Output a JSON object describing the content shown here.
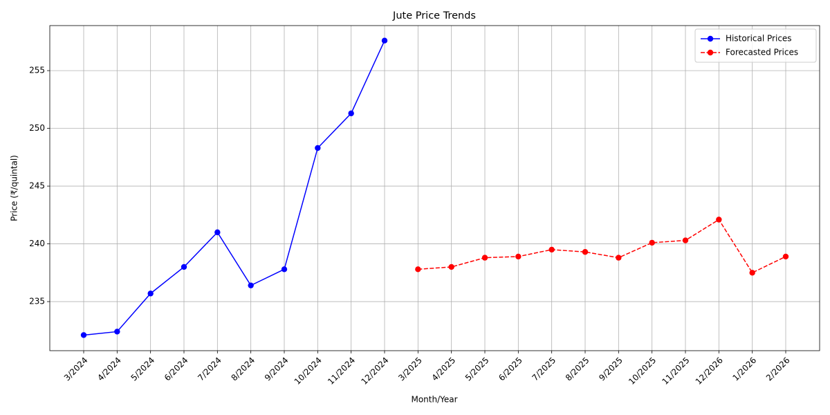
{
  "chart_data": {
    "type": "line",
    "title": "Jute Price Trends",
    "x_label": "Month/Year",
    "y_label": "Price (₹/quintal)",
    "categories": [
      "3/2024",
      "4/2024",
      "5/2024",
      "6/2024",
      "7/2024",
      "8/2024",
      "9/2024",
      "10/2024",
      "11/2024",
      "12/2024",
      "3/2025",
      "4/2025",
      "5/2025",
      "6/2025",
      "7/2025",
      "8/2025",
      "9/2025",
      "10/2025",
      "11/2025",
      "12/2026",
      "1/2026",
      "2/2026"
    ],
    "series": [
      {
        "name": "Historical Prices",
        "color": "#0000ff",
        "dashed": false,
        "values": [
          232.1,
          232.4,
          235.7,
          238.0,
          241.0,
          236.4,
          237.8,
          248.3,
          251.3,
          257.6,
          null,
          null,
          null,
          null,
          null,
          null,
          null,
          null,
          null,
          null,
          null,
          null
        ]
      },
      {
        "name": "Forecasted Prices",
        "color": "#ff0000",
        "dashed": true,
        "values": [
          null,
          null,
          null,
          null,
          null,
          null,
          null,
          null,
          null,
          null,
          237.8,
          238.0,
          238.8,
          238.9,
          239.5,
          239.3,
          238.8,
          240.1,
          240.3,
          242.1,
          237.5,
          238.9
        ]
      }
    ],
    "ylim": [
      230.75,
      258.9
    ],
    "yticks": [
      235,
      240,
      245,
      250,
      255
    ],
    "grid": true,
    "legend": "upper right"
  }
}
